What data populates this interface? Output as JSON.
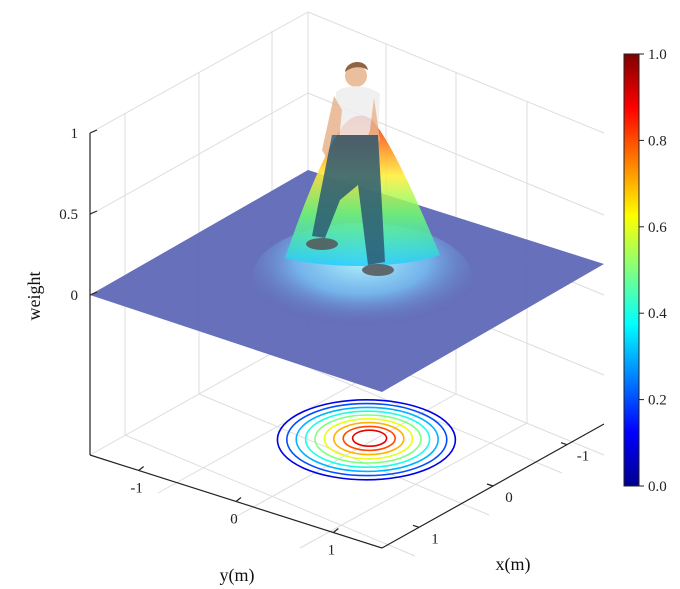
{
  "chart_data": {
    "type": "surface",
    "title": "",
    "zlabel": "weight",
    "xlabel": "x(m)",
    "ylabel": "y(m)",
    "z_ticks": [
      {
        "value": 0,
        "label": "0"
      },
      {
        "value": 0.5,
        "label": "0.5"
      },
      {
        "value": 1,
        "label": "1"
      }
    ],
    "y_ticks": [
      {
        "value": -1,
        "label": "-1"
      },
      {
        "value": 0,
        "label": "0"
      },
      {
        "value": 1,
        "label": "1"
      }
    ],
    "x_ticks": [
      {
        "value": -1,
        "label": "-1"
      },
      {
        "value": 0,
        "label": "0"
      },
      {
        "value": 1,
        "label": "1"
      }
    ],
    "zlim": [
      -1,
      1
    ],
    "surface": {
      "peak_weight": 1.0,
      "base_weight": 0.0,
      "shape": "single peak under the person, flat plane elsewhere"
    },
    "contour_levels": [
      0.1,
      0.2,
      0.3,
      0.4,
      0.5,
      0.6,
      0.7,
      0.8,
      0.9
    ],
    "colorbar": {
      "colormap": "jet",
      "range": [
        0.0,
        1.0
      ],
      "ticks": [
        "0.0",
        "0.2",
        "0.4",
        "0.6",
        "0.8",
        "1.0"
      ]
    },
    "grid": true,
    "colors": {
      "plane": "#5a64b4",
      "axes": "#222222",
      "grid": "#dddddd"
    }
  }
}
